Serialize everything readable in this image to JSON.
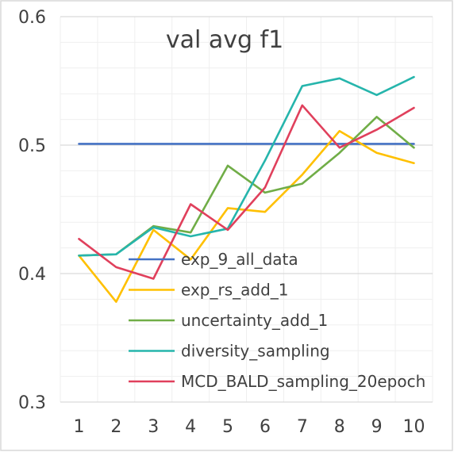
{
  "chart_data": {
    "type": "line",
    "title": "val avg f1",
    "xlabel": "",
    "ylabel": "",
    "x": [
      1,
      2,
      3,
      4,
      5,
      6,
      7,
      8,
      9,
      10
    ],
    "x_tick_labels": [
      "1",
      "2",
      "3",
      "4",
      "5",
      "6",
      "7",
      "8",
      "9",
      "10"
    ],
    "ylim": [
      0.3,
      0.6
    ],
    "y_ticks": [
      0.3,
      0.4,
      0.5,
      0.6
    ],
    "y_tick_labels": [
      "0.3",
      "0.4",
      "0.5",
      "0.6"
    ],
    "y_minor_step": 0.02,
    "grid": true,
    "legend_position": "bottom-right",
    "series": [
      {
        "name": "exp_9_all_data",
        "color": "#4472c4",
        "values": [
          0.501,
          0.501,
          0.501,
          0.501,
          0.501,
          0.501,
          0.501,
          0.501,
          0.501,
          0.501
        ]
      },
      {
        "name": "exp_rs_add_1",
        "color": "#ffc000",
        "values": [
          0.414,
          0.378,
          0.434,
          0.411,
          0.451,
          0.448,
          0.477,
          0.511,
          0.494,
          0.486
        ]
      },
      {
        "name": "uncertainty_add_1",
        "color": "#70ad47",
        "values": [
          0.414,
          0.415,
          0.437,
          0.432,
          0.484,
          0.463,
          0.47,
          0.494,
          0.522,
          0.498
        ]
      },
      {
        "name": "diversity_sampling",
        "color": "#26b5ac",
        "values": [
          0.414,
          0.415,
          0.436,
          0.429,
          0.435,
          0.488,
          0.546,
          0.552,
          0.539,
          0.553
        ]
      },
      {
        "name": "MCD_BALD_sampling_20epoch",
        "color": "#e0405c",
        "values": [
          0.427,
          0.405,
          0.396,
          0.454,
          0.434,
          0.467,
          0.531,
          0.498,
          0.512,
          0.529
        ]
      }
    ]
  }
}
